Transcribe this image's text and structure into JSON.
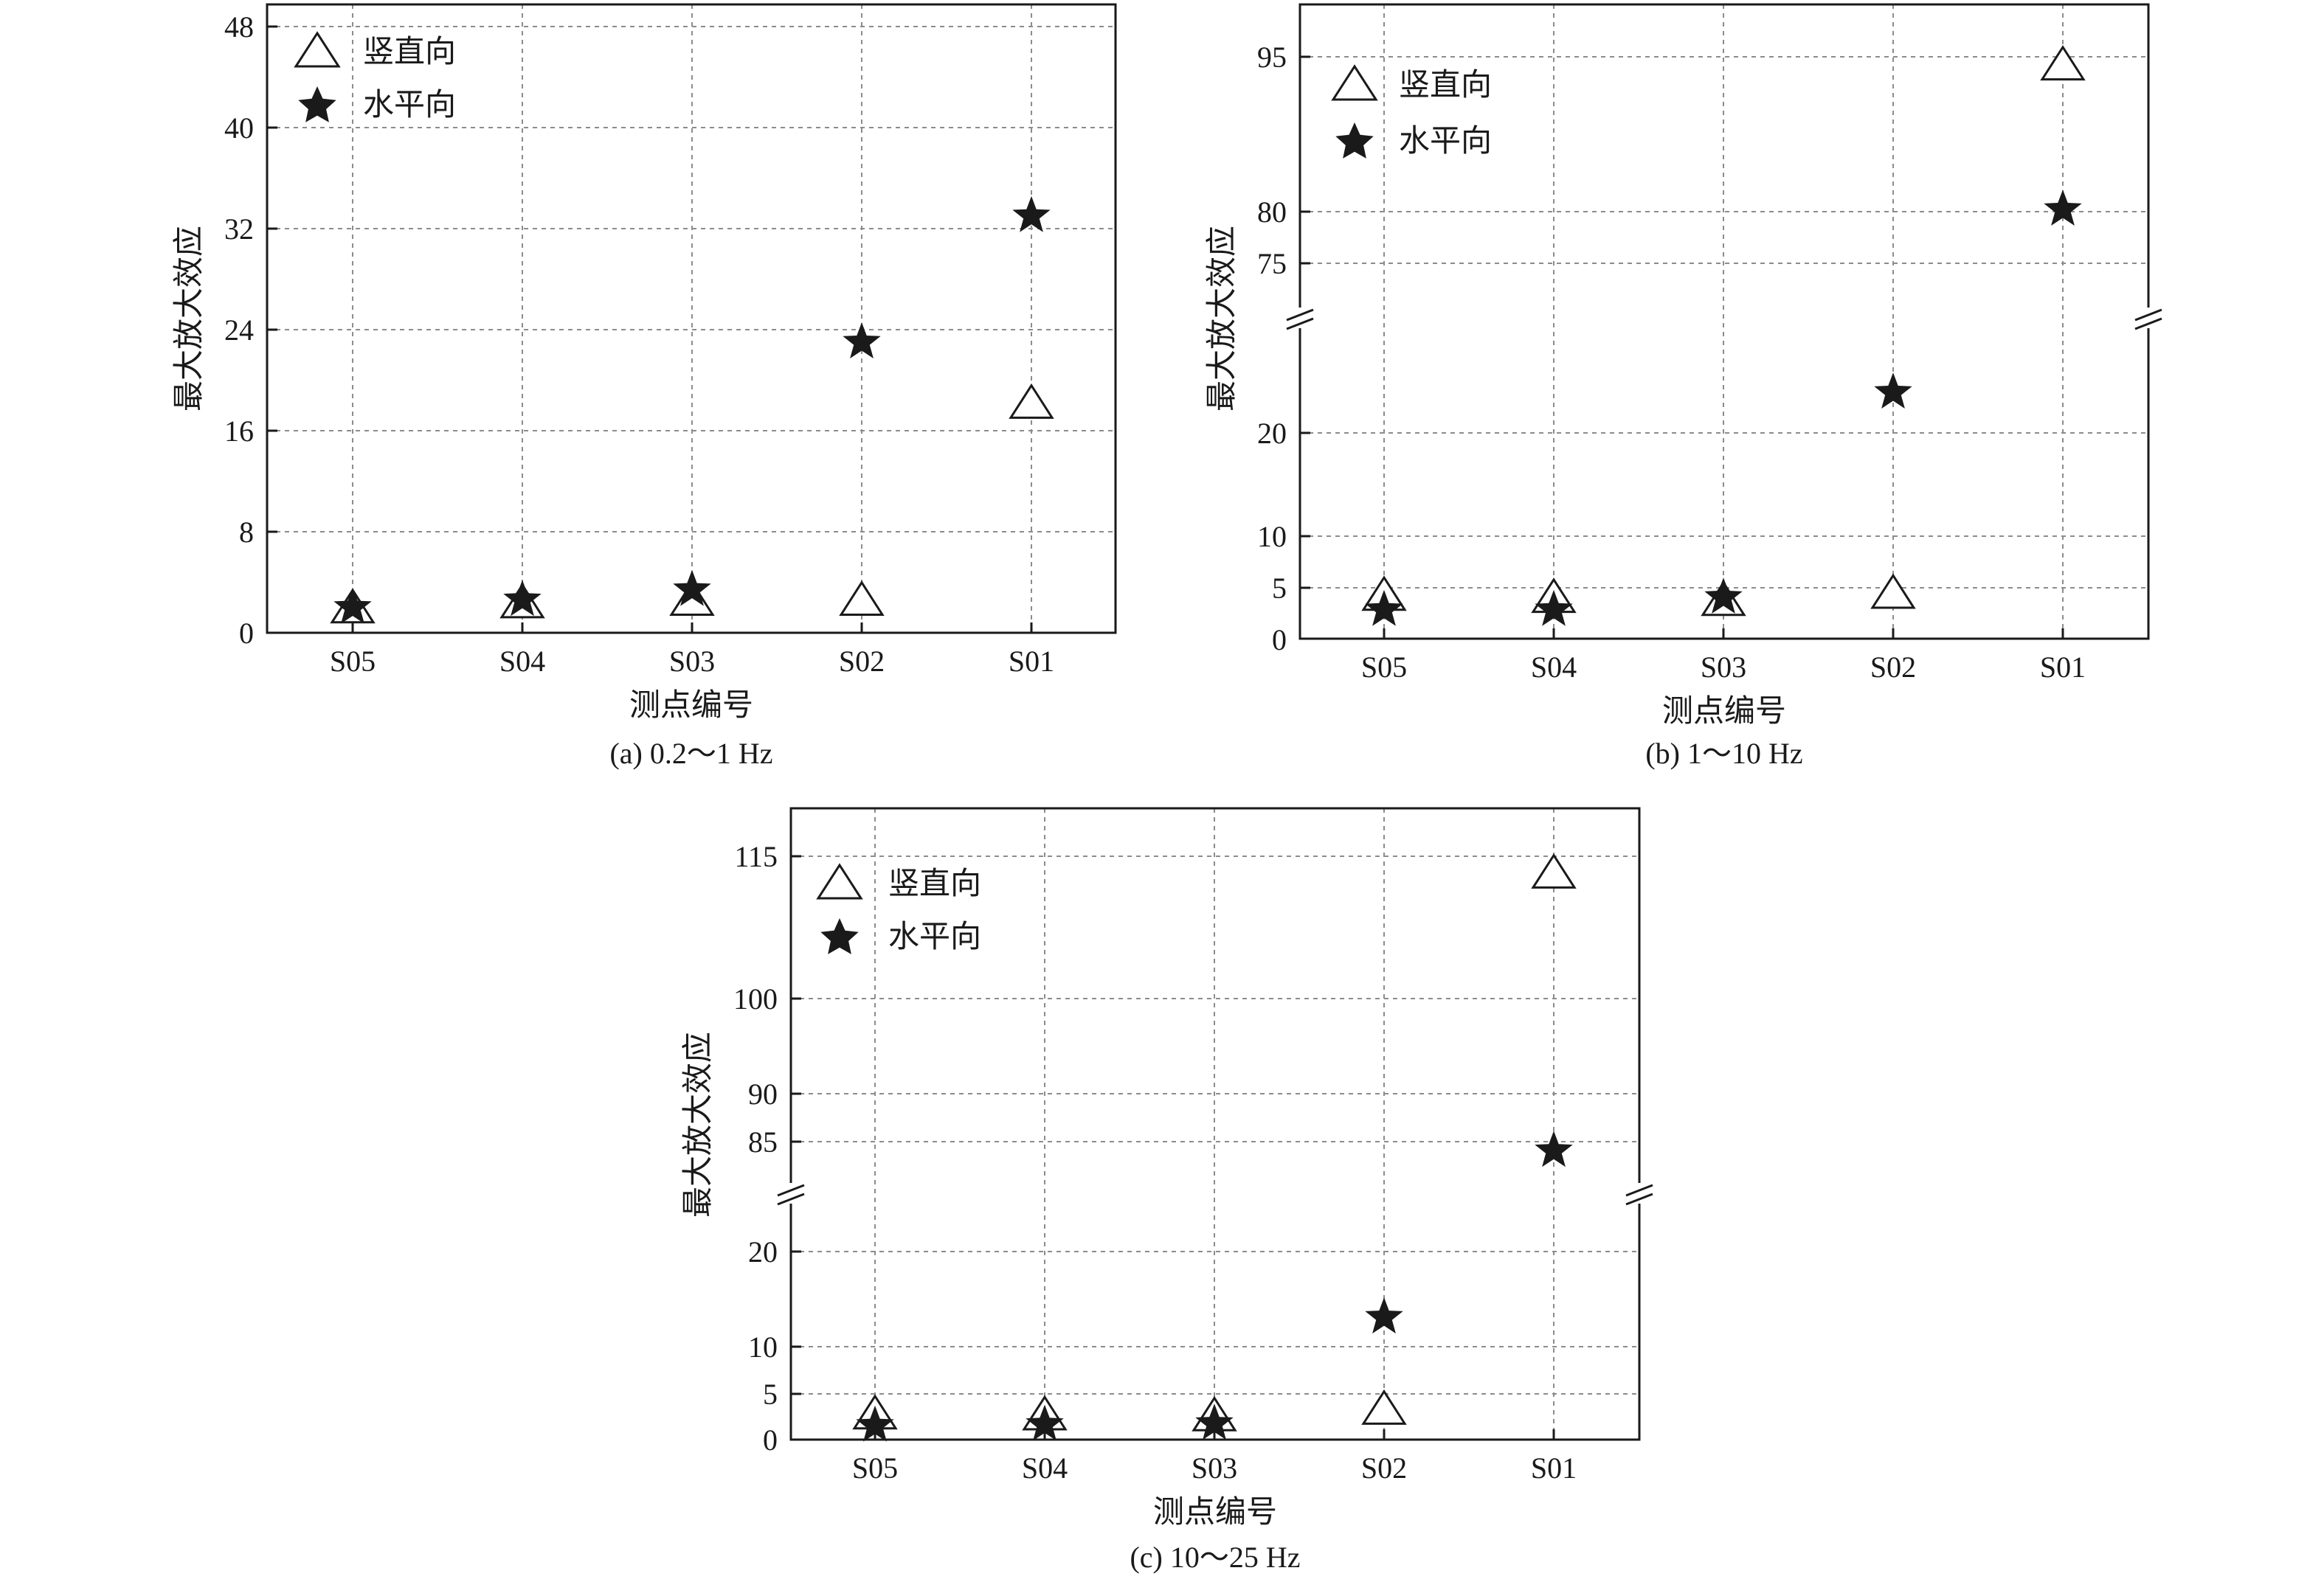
{
  "chart_data": [
    {
      "type": "scatter",
      "caption": "(a) 0.2～1 Hz",
      "xlabel": "测点编号",
      "ylabel": "最大放大效应",
      "categories": [
        "S05",
        "S04",
        "S03",
        "S02",
        "S01"
      ],
      "y_ticks": [
        "0",
        "8",
        "16",
        "24",
        "32",
        "40",
        "48"
      ],
      "axis_break": false,
      "ylim": [
        0,
        48
      ],
      "grid": true,
      "legend_position": "top-left",
      "series": [
        {
          "name": "竖直向",
          "marker": "open-triangle",
          "values": [
            1.8,
            2.2,
            2.4,
            2.4,
            18.0
          ]
        },
        {
          "name": "水平向",
          "marker": "filled-star",
          "values": [
            2.0,
            2.6,
            3.4,
            23.0,
            33.0
          ]
        }
      ]
    },
    {
      "type": "scatter",
      "caption": "(b) 1～10 Hz",
      "xlabel": "测点编号",
      "ylabel": "最大放大效应",
      "categories": [
        "S05",
        "S04",
        "S03",
        "S02",
        "S01"
      ],
      "y_ticks": [
        "0",
        "5",
        "10",
        "20",
        "75",
        "80",
        "95"
      ],
      "axis_break": true,
      "lower_segment_range": [
        0,
        30
      ],
      "upper_segment_range": [
        70,
        100
      ],
      "grid": true,
      "legend_position": "top-left",
      "series": [
        {
          "name": "竖直向",
          "marker": "open-triangle",
          "values": [
            4.0,
            3.8,
            3.5,
            4.2,
            94.0
          ]
        },
        {
          "name": "水平向",
          "marker": "filled-star",
          "values": [
            2.8,
            2.8,
            4.0,
            24.0,
            80.2
          ]
        }
      ]
    },
    {
      "type": "scatter",
      "caption": "(c) 10～25 Hz",
      "xlabel": "测点编号",
      "ylabel": "最大放大效应",
      "categories": [
        "S05",
        "S04",
        "S03",
        "S02",
        "S01"
      ],
      "y_ticks": [
        "0",
        "5",
        "10",
        "20",
        "85",
        "90",
        "100",
        "115"
      ],
      "axis_break": true,
      "lower_segment_range": [
        0,
        25
      ],
      "upper_segment_range": [
        80,
        120
      ],
      "grid": true,
      "legend_position": "top-left",
      "series": [
        {
          "name": "竖直向",
          "marker": "open-triangle",
          "values": [
            2.5,
            2.4,
            2.3,
            3.0,
            113.0
          ]
        },
        {
          "name": "水平向",
          "marker": "filled-star",
          "values": [
            1.5,
            1.6,
            1.7,
            13.0,
            84.0
          ]
        }
      ]
    }
  ]
}
